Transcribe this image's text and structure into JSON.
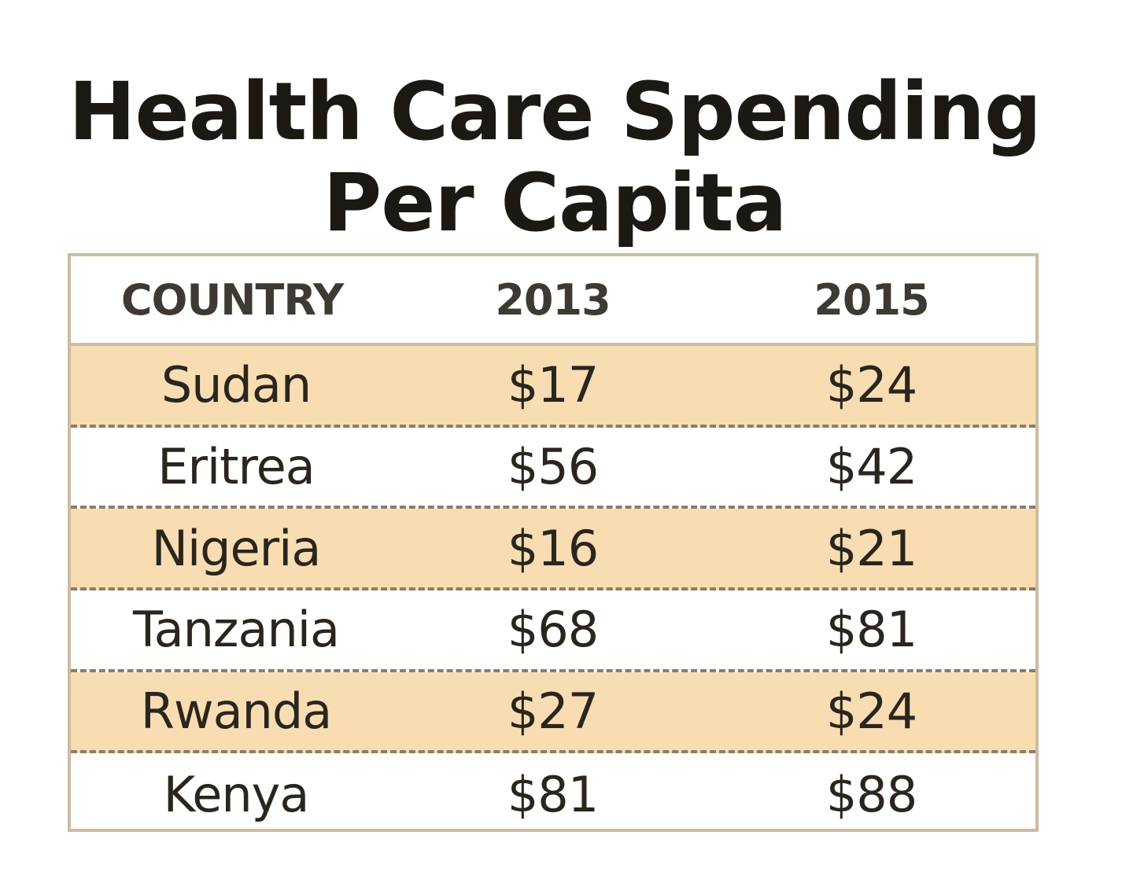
{
  "chart_data": {
    "type": "table",
    "title_lines": [
      "Health Care Spending",
      "Per Capita"
    ],
    "columns": [
      "COUNTRY",
      "2013",
      "2015"
    ],
    "rows": [
      {
        "country": "Sudan",
        "y2013": "$17",
        "y2015": "$24"
      },
      {
        "country": "Eritrea",
        "y2013": "$56",
        "y2015": "$42"
      },
      {
        "country": "Nigeria",
        "y2013": "$16",
        "y2015": "$21"
      },
      {
        "country": "Tanzania",
        "y2013": "$68",
        "y2015": "$81"
      },
      {
        "country": "Rwanda",
        "y2013": "$27",
        "y2015": "$24"
      },
      {
        "country": "Kenya",
        "y2013": "$81",
        "y2015": "$88"
      }
    ]
  },
  "colors": {
    "shade": "#f8ddb3",
    "border": "#cdbca0",
    "dash": "#8a7d6a"
  }
}
